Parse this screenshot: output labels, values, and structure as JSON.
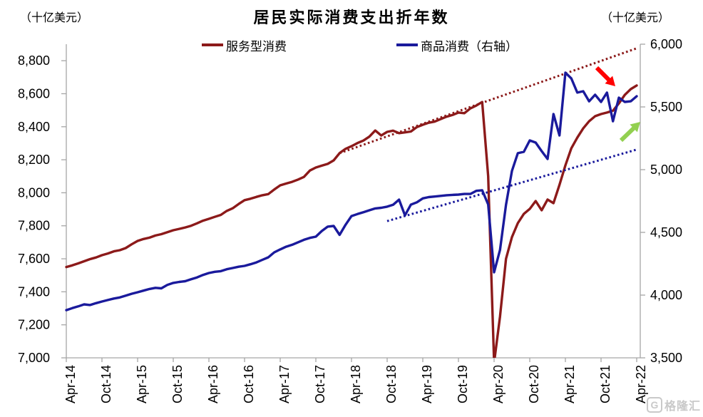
{
  "title": "居民实际消费支出折年数",
  "unit_left": "（十亿美元）",
  "unit_right": "（十亿美元）",
  "legend": [
    {
      "label": "服务型消费",
      "color": "#8C1A1A"
    },
    {
      "label": "商品消费（右轴）",
      "color": "#1A1A9C"
    }
  ],
  "watermark": {
    "logo": "G",
    "text": "格隆汇"
  },
  "chart_data": {
    "type": "line",
    "title": "居民实际消费支出折年数",
    "x_start": "Apr-14",
    "x_end": "Apr-22",
    "x_months_total": 97,
    "x_tick_labels": [
      "Apr-14",
      "Oct-14",
      "Apr-15",
      "Oct-15",
      "Apr-16",
      "Oct-16",
      "Apr-17",
      "Oct-17",
      "Apr-18",
      "Oct-18",
      "Apr-19",
      "Oct-19",
      "Apr-20",
      "Oct-20",
      "Apr-21",
      "Oct-21",
      "Apr-22"
    ],
    "left_axis": {
      "min": 7000,
      "max": 8900,
      "tick_values": [
        8800,
        8600,
        8400,
        8200,
        8000,
        7800,
        7600,
        7400,
        7200,
        7000
      ],
      "tick_labels": [
        "8,800",
        "8,600",
        "8,400",
        "8,200",
        "8,000",
        "7,800",
        "7,600",
        "7,400",
        "7,200",
        "7,000"
      ]
    },
    "right_axis": {
      "min": 3500,
      "max": 6000,
      "tick_values": [
        6000,
        5500,
        5000,
        4500,
        4000,
        3500
      ],
      "tick_labels": [
        "6,000",
        "5,500",
        "5,000",
        "4,500",
        "4,000",
        "3,500"
      ]
    },
    "grid": false,
    "legend_position": "top",
    "series": [
      {
        "name": "服务型消费",
        "axis": "left",
        "style": "solid",
        "color": "#8C1A1A",
        "values": [
          7550,
          7560,
          7572,
          7585,
          7598,
          7608,
          7622,
          7632,
          7645,
          7652,
          7665,
          7688,
          7708,
          7720,
          7728,
          7741,
          7749,
          7761,
          7773,
          7781,
          7790,
          7800,
          7815,
          7831,
          7842,
          7854,
          7866,
          7890,
          7906,
          7932,
          7955,
          7964,
          7975,
          7985,
          7992,
          8020,
          8045,
          8056,
          8066,
          8080,
          8096,
          8135,
          8153,
          8164,
          8175,
          8196,
          8240,
          8266,
          8282,
          8301,
          8316,
          8340,
          8377,
          8347,
          8369,
          8376,
          8361,
          8366,
          8371,
          8398,
          8412,
          8424,
          8431,
          8446,
          8461,
          8471,
          8486,
          8482,
          8511,
          8528,
          8550,
          8100,
          6970,
          7250,
          7600,
          7731,
          7816,
          7872,
          7902,
          7950,
          7894,
          7959,
          7937,
          8048,
          8166,
          8269,
          8334,
          8390,
          8433,
          8464,
          8477,
          8486,
          8497,
          8541,
          8593,
          8628,
          8650
        ]
      },
      {
        "name": "商品消费（右轴）",
        "axis": "right",
        "style": "solid",
        "color": "#1A1A9C",
        "values": [
          3880,
          3896,
          3910,
          3926,
          3921,
          3936,
          3949,
          3961,
          3973,
          3981,
          3996,
          4011,
          4023,
          4036,
          4049,
          4058,
          4054,
          4081,
          4097,
          4105,
          4111,
          4126,
          4141,
          4161,
          4176,
          4186,
          4191,
          4206,
          4216,
          4226,
          4233,
          4246,
          4261,
          4281,
          4301,
          4341,
          4364,
          4386,
          4401,
          4421,
          4441,
          4456,
          4466,
          4511,
          4546,
          4551,
          4480,
          4561,
          4630,
          4646,
          4661,
          4676,
          4691,
          4696,
          4705,
          4720,
          4761,
          4636,
          4721,
          4740,
          4771,
          4781,
          4786,
          4791,
          4796,
          4799,
          4801,
          4806,
          4806,
          4831,
          4836,
          4722,
          4182,
          4360,
          4720,
          4989,
          5131,
          5142,
          5233,
          5216,
          5148,
          5085,
          5443,
          5273,
          5773,
          5727,
          5614,
          5625,
          5545,
          5597,
          5540,
          5614,
          5386,
          5574,
          5540,
          5545,
          5585
        ]
      },
      {
        "name": "服务型消费趋势线",
        "axis": "left",
        "style": "dotted",
        "color": "#8C1A1A",
        "points": [
          {
            "month": 46,
            "value": 8240
          },
          {
            "month": 96,
            "value": 8875
          }
        ]
      },
      {
        "name": "商品消费趋势线",
        "axis": "right",
        "style": "dotted",
        "color": "#1A1A9C",
        "points": [
          {
            "month": 54,
            "value": 4590
          },
          {
            "month": 96,
            "value": 5160
          }
        ]
      }
    ],
    "annotations": [
      {
        "type": "arrow",
        "color": "#FF0000",
        "direction": "down-right",
        "x1": 837,
        "y1": 95,
        "x2": 863,
        "y2": 121
      },
      {
        "type": "arrow",
        "color": "#92D050",
        "direction": "up-right",
        "x1": 871,
        "y1": 197,
        "x2": 898,
        "y2": 171
      }
    ]
  }
}
